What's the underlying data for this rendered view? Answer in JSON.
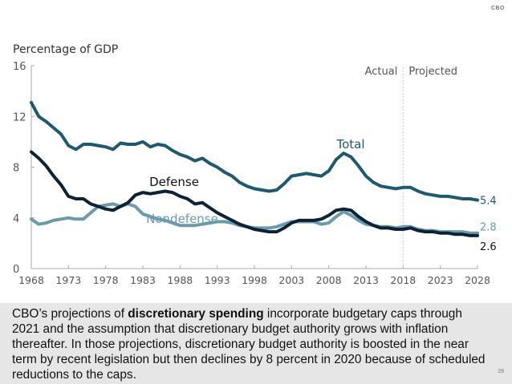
{
  "header": {
    "logo": "CBO"
  },
  "chart_data": {
    "type": "line",
    "title": "",
    "ylabel": "Percentage of GDP",
    "xlabel": "",
    "ylim": [
      0,
      16
    ],
    "xlim": [
      1968,
      2028
    ],
    "yticks": [
      0,
      4,
      8,
      12,
      16
    ],
    "xticks": [
      1968,
      1973,
      1978,
      1983,
      1988,
      1993,
      1998,
      2003,
      2008,
      2013,
      2018,
      2023,
      2028
    ],
    "grid": false,
    "divider": {
      "year": 2018,
      "left_label": "Actual",
      "right_label": "Projected"
    },
    "x": [
      1968,
      1969,
      1970,
      1971,
      1972,
      1973,
      1974,
      1975,
      1976,
      1977,
      1978,
      1979,
      1980,
      1981,
      1982,
      1983,
      1984,
      1985,
      1986,
      1987,
      1988,
      1989,
      1990,
      1991,
      1992,
      1993,
      1994,
      1995,
      1996,
      1997,
      1998,
      1999,
      2000,
      2001,
      2002,
      2003,
      2004,
      2005,
      2006,
      2007,
      2008,
      2009,
      2010,
      2011,
      2012,
      2013,
      2014,
      2015,
      2016,
      2017,
      2018,
      2019,
      2020,
      2021,
      2022,
      2023,
      2024,
      2025,
      2026,
      2027,
      2028
    ],
    "series": [
      {
        "name": "Total",
        "label": "Total",
        "end_label": "5.4",
        "color": "#1e5a6e",
        "values": [
          13.1,
          12.0,
          11.6,
          11.1,
          10.6,
          9.7,
          9.4,
          9.8,
          9.8,
          9.7,
          9.6,
          9.4,
          9.9,
          9.8,
          9.8,
          10.0,
          9.6,
          9.8,
          9.7,
          9.3,
          9.0,
          8.8,
          8.5,
          8.7,
          8.3,
          8.0,
          7.6,
          7.3,
          6.8,
          6.5,
          6.3,
          6.2,
          6.1,
          6.2,
          6.7,
          7.3,
          7.4,
          7.5,
          7.4,
          7.3,
          7.7,
          8.6,
          9.1,
          8.8,
          8.1,
          7.3,
          6.8,
          6.5,
          6.4,
          6.3,
          6.4,
          6.4,
          6.1,
          5.9,
          5.8,
          5.7,
          5.7,
          5.6,
          5.5,
          5.5,
          5.4
        ]
      },
      {
        "name": "Defense",
        "label": "Defense",
        "end_label": "2.6",
        "color": "#0d2233",
        "values": [
          9.2,
          8.7,
          8.1,
          7.3,
          6.6,
          5.7,
          5.5,
          5.5,
          5.1,
          4.9,
          4.7,
          4.6,
          4.9,
          5.2,
          5.8,
          6.0,
          5.9,
          6.0,
          6.1,
          6.0,
          5.7,
          5.5,
          5.1,
          5.2,
          4.8,
          4.4,
          4.1,
          3.8,
          3.5,
          3.3,
          3.1,
          3.0,
          2.9,
          2.9,
          3.2,
          3.6,
          3.8,
          3.8,
          3.8,
          3.9,
          4.2,
          4.6,
          4.7,
          4.6,
          4.1,
          3.7,
          3.4,
          3.2,
          3.2,
          3.1,
          3.1,
          3.2,
          3.0,
          2.9,
          2.9,
          2.8,
          2.8,
          2.7,
          2.7,
          2.6,
          2.6
        ]
      },
      {
        "name": "Nondefense",
        "label": "Nondefense",
        "end_label": "2.8",
        "color": "#6a9aad",
        "values": [
          3.9,
          3.5,
          3.6,
          3.8,
          3.9,
          4.0,
          3.9,
          3.9,
          4.4,
          4.9,
          5.0,
          5.1,
          4.9,
          5.1,
          4.9,
          4.3,
          4.1,
          3.9,
          3.8,
          3.6,
          3.4,
          3.4,
          3.4,
          3.5,
          3.6,
          3.7,
          3.7,
          3.6,
          3.4,
          3.3,
          3.2,
          3.2,
          3.2,
          3.3,
          3.5,
          3.7,
          3.7,
          3.7,
          3.7,
          3.5,
          3.6,
          4.1,
          4.5,
          4.2,
          3.8,
          3.5,
          3.4,
          3.3,
          3.3,
          3.2,
          3.3,
          3.3,
          3.1,
          3.0,
          3.0,
          2.9,
          2.9,
          2.9,
          2.9,
          2.8,
          2.8
        ]
      }
    ]
  },
  "caption": {
    "part1": "CBO’s projections of ",
    "bold": "discretionary spending",
    "part2": " incorporate budgetary caps through 2021 and the assumption that discretionary budget authority grows with inflation thereafter. In those projections, discretionary budget authority is boosted in the near term by recent legislation but then declines by 8 percent in 2020 because of scheduled reductions to the caps."
  },
  "footer": {
    "page_number": "28"
  }
}
